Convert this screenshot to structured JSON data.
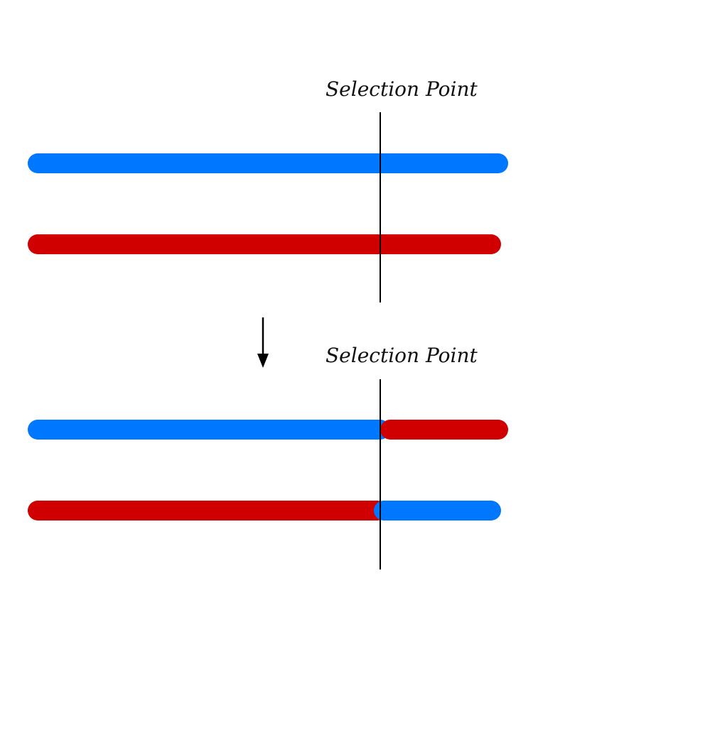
{
  "labels": {
    "top_selection": "Selection Point",
    "bottom_selection": "Selection Point"
  },
  "colors": {
    "blue": "#0077ff",
    "red": "#d10000",
    "line": "#000000",
    "background": "#ffffff"
  },
  "diagram": {
    "before": {
      "bar_1_segments": [
        "blue"
      ],
      "bar_2_segments": [
        "red"
      ]
    },
    "after": {
      "bar_1_segments": [
        "blue",
        "red"
      ],
      "bar_2_segments": [
        "red",
        "blue"
      ]
    }
  }
}
